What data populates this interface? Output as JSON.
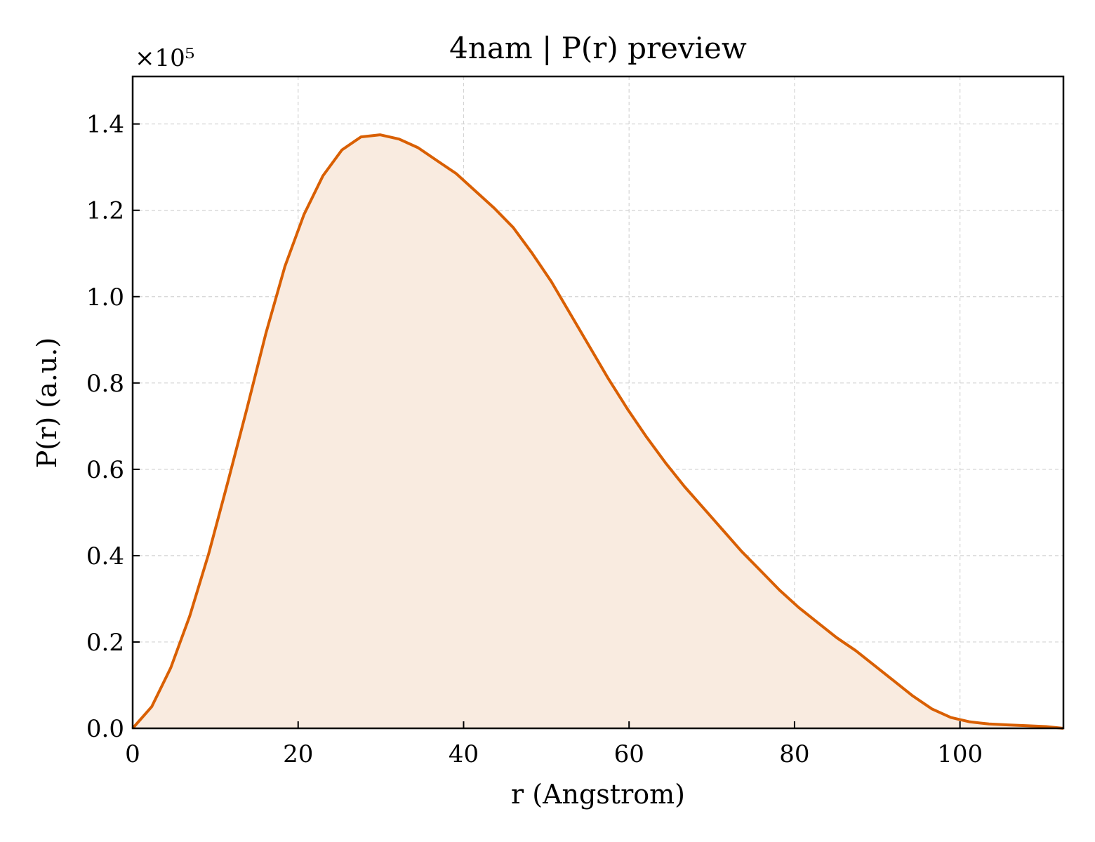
{
  "chart_data": {
    "type": "area",
    "title": "4nam | P(r) preview",
    "xlabel": "r (Angstrom)",
    "ylabel": "P(r) (a.u.)",
    "y_multiplier_label": "×10⁵",
    "xlim": [
      0,
      112.5
    ],
    "ylim": [
      0,
      1.51
    ],
    "xticks": [
      0,
      20,
      40,
      60,
      80,
      100
    ],
    "xtick_labels": [
      "0",
      "20",
      "40",
      "60",
      "80",
      "100"
    ],
    "yticks": [
      0.0,
      0.2,
      0.4,
      0.6,
      0.8,
      1.0,
      1.2,
      1.4
    ],
    "ytick_labels": [
      "0.0",
      "0.2",
      "0.4",
      "0.6",
      "0.8",
      "1.0",
      "1.2",
      "1.4"
    ],
    "grid": true,
    "line_color": "#d95f02",
    "fill_color": "#f9ebe0",
    "series": [
      {
        "x": [
          0,
          2.3,
          4.6,
          6.9,
          9.2,
          11.5,
          13.8,
          16.1,
          18.4,
          20.7,
          23.0,
          25.3,
          27.6,
          29.9,
          32.2,
          34.5,
          36.8,
          39.1,
          41.4,
          43.7,
          46.0,
          48.3,
          50.6,
          52.9,
          55.2,
          57.5,
          59.8,
          62.1,
          64.4,
          66.7,
          69.0,
          71.3,
          73.6,
          75.9,
          78.2,
          80.5,
          82.8,
          85.1,
          87.4,
          89.7,
          92.0,
          94.3,
          96.6,
          98.9,
          101.2,
          103.5,
          105.8,
          108.1,
          110.4,
          112.5
        ],
        "values": [
          0.0,
          0.05,
          0.14,
          0.26,
          0.405,
          0.57,
          0.74,
          0.915,
          1.07,
          1.19,
          1.28,
          1.34,
          1.37,
          1.375,
          1.365,
          1.345,
          1.315,
          1.285,
          1.245,
          1.205,
          1.16,
          1.1,
          1.035,
          0.96,
          0.885,
          0.81,
          0.74,
          0.675,
          0.615,
          0.56,
          0.51,
          0.46,
          0.41,
          0.365,
          0.32,
          0.28,
          0.245,
          0.21,
          0.18,
          0.145,
          0.11,
          0.075,
          0.045,
          0.025,
          0.015,
          0.01,
          0.008,
          0.006,
          0.004,
          0.0
        ]
      }
    ]
  }
}
